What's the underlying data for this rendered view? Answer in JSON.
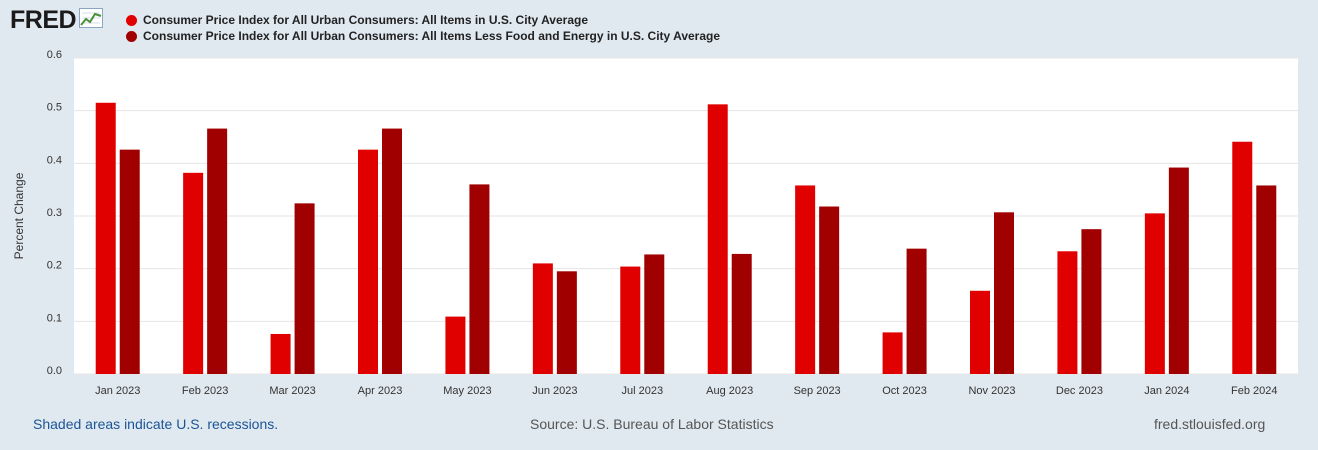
{
  "header": {
    "logo_text": "FRED"
  },
  "colors": {
    "series1": "#e00000",
    "series2": "#a00000",
    "plot_bg": "#ffffff",
    "page_bg": "#e1e9f0",
    "grid": "#e6e6e6"
  },
  "chart_data": {
    "type": "bar",
    "title": "",
    "xlabel": "",
    "ylabel": "Percent Change",
    "ylim": [
      0,
      0.6
    ],
    "yticks": [
      "0.0",
      "0.1",
      "0.2",
      "0.3",
      "0.4",
      "0.5",
      "0.6"
    ],
    "categories": [
      "Jan 2023",
      "Feb 2023",
      "Mar 2023",
      "Apr 2023",
      "May 2023",
      "Jun 2023",
      "Jul 2023",
      "Aug 2023",
      "Sep 2023",
      "Oct 2023",
      "Nov 2023",
      "Dec 2023",
      "Jan 2024",
      "Feb 2024"
    ],
    "series": [
      {
        "name": "Consumer Price Index for All Urban Consumers: All Items in U.S. City Average",
        "values": [
          0.515,
          0.382,
          0.076,
          0.426,
          0.109,
          0.21,
          0.204,
          0.512,
          0.358,
          0.079,
          0.158,
          0.233,
          0.305,
          0.441
        ]
      },
      {
        "name": "Consumer Price Index for All Urban Consumers: All Items Less Food and Energy in U.S. City Average",
        "values": [
          0.426,
          0.466,
          0.324,
          0.466,
          0.36,
          0.195,
          0.227,
          0.228,
          0.318,
          0.238,
          0.307,
          0.275,
          0.392,
          0.358
        ]
      }
    ],
    "legend": "top-left"
  },
  "footer": {
    "recessions": "Shaded areas indicate U.S. recessions.",
    "source": "Source: U.S. Bureau of Labor Statistics",
    "site": "fred.stlouisfed.org"
  }
}
